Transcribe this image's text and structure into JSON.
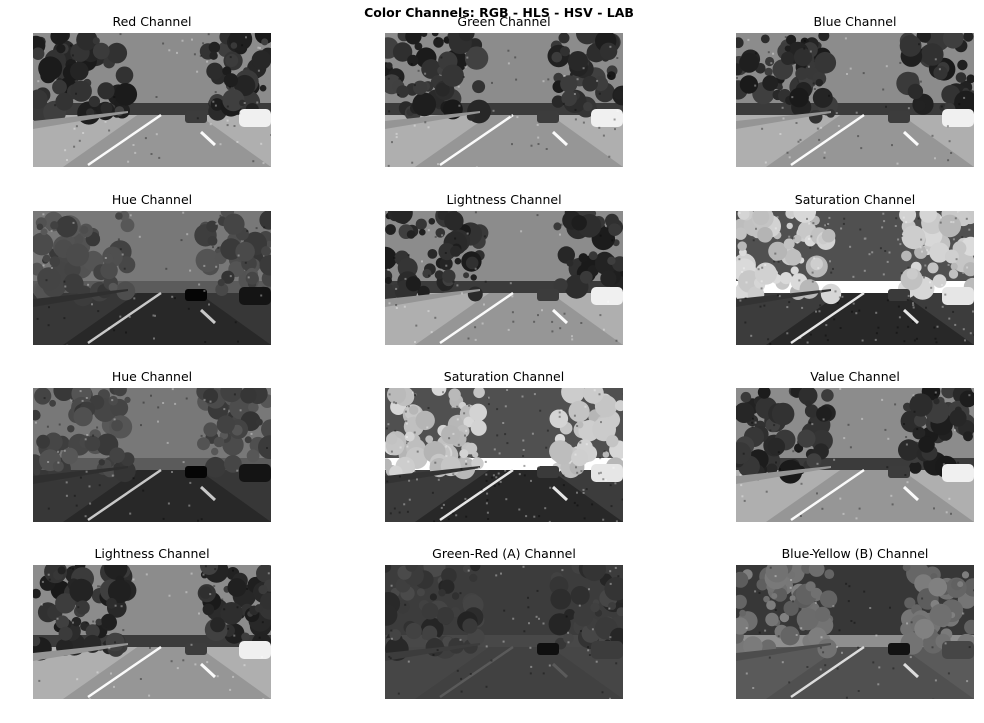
{
  "figure": {
    "title": "Color Channels: RGB - HLS - HSV - LAB"
  },
  "panels": [
    {
      "title": "Red Channel",
      "kind": "normal",
      "tone": 0.5
    },
    {
      "title": "Green Channel",
      "kind": "normal",
      "tone": 0.5
    },
    {
      "title": "Blue Channel",
      "kind": "normal",
      "tone": 0.55
    },
    {
      "title": "Hue Channel",
      "kind": "hue",
      "tone": 0.5
    },
    {
      "title": "Lightness Channel",
      "kind": "normal",
      "tone": 0.5
    },
    {
      "title": "Saturation Channel",
      "kind": "saturation",
      "tone": 0.5
    },
    {
      "title": "Hue Channel",
      "kind": "hue",
      "tone": 0.5
    },
    {
      "title": "Saturation Channel",
      "kind": "saturation",
      "tone": 0.5
    },
    {
      "title": "Value Channel",
      "kind": "normal",
      "tone": 0.55
    },
    {
      "title": "Lightness Channel",
      "kind": "normal",
      "tone": 0.5
    },
    {
      "title": "Green-Red (A) Channel",
      "kind": "lab_a",
      "tone": 0.3
    },
    {
      "title": "Blue-Yellow (B) Channel",
      "kind": "lab_b",
      "tone": 0.35
    }
  ]
}
